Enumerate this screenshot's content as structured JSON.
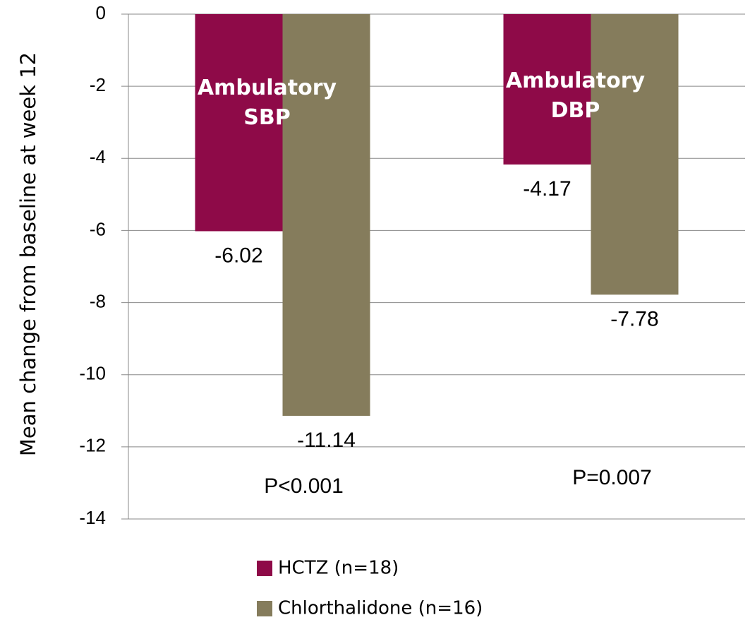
{
  "chart_data": {
    "type": "bar",
    "ylabel": "Mean change from baseline at week 12",
    "categories": [
      "Ambulatory SBP",
      "Ambulatory DBP"
    ],
    "series": [
      {
        "name": "HCTZ (n=18)",
        "color": "#8e0a48",
        "values": [
          -6.02,
          -4.17
        ]
      },
      {
        "name": "Chlorthalidone (n=16)",
        "color": "#857c5c",
        "values": [
          -11.14,
          -7.78
        ]
      }
    ],
    "annotations": [
      "P<0.001",
      "P=0.007"
    ],
    "ylim": [
      -14,
      0
    ],
    "yticks": [
      0,
      -2,
      -4,
      -6,
      -8,
      -10,
      -12,
      -14
    ],
    "grid": true
  }
}
